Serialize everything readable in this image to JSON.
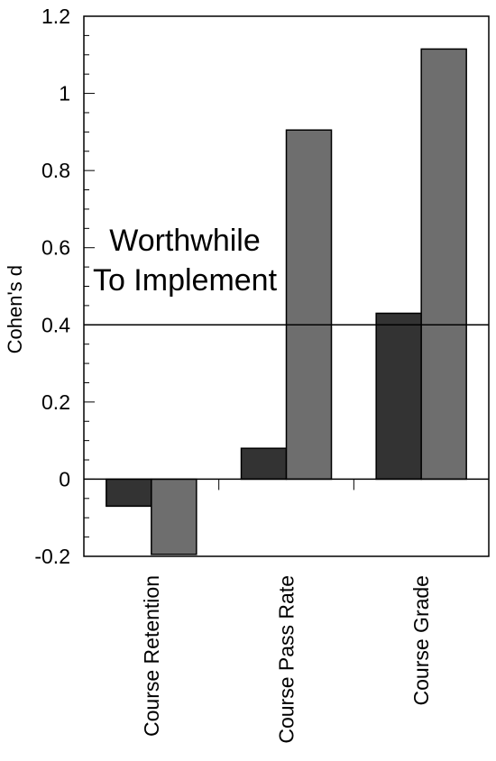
{
  "chart_data": {
    "type": "bar",
    "title": "",
    "xlabel": "",
    "ylabel": "Cohen's d",
    "ylim": [
      -0.2,
      1.2
    ],
    "yticks": [
      "-0.2",
      "0",
      "0.2",
      "0.4",
      "0.6",
      "0.8",
      "1",
      "1.2"
    ],
    "categories": [
      "Course Retention",
      "Course Pass Rate",
      "Course Grade"
    ],
    "series": [
      {
        "values": [
          -0.07,
          0.08,
          0.43
        ],
        "color": "#333333"
      },
      {
        "values": [
          -0.195,
          0.905,
          1.115
        ],
        "color": "#6e6e6e"
      }
    ],
    "grid": false,
    "legend": "none",
    "reference_line": {
      "value": 0.4,
      "label_lines": [
        "Worthwhile",
        "To Implement"
      ]
    }
  }
}
